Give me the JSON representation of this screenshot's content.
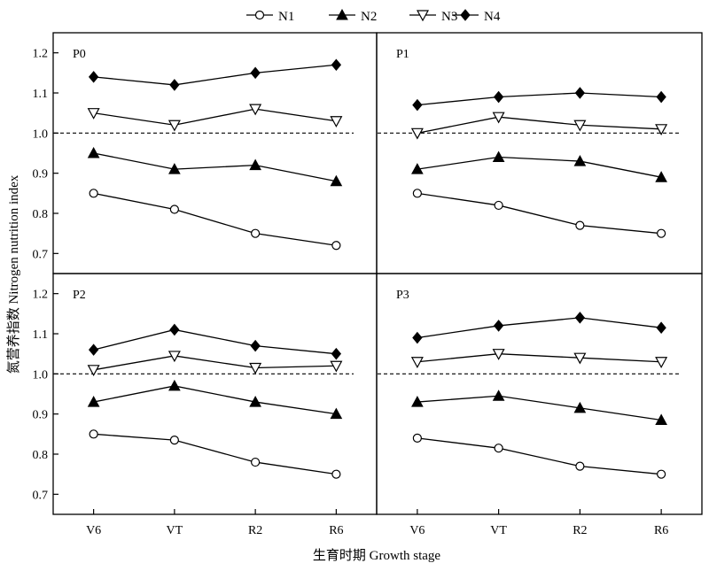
{
  "legend_labels": [
    "N1",
    "N2",
    "N3",
    "N4"
  ],
  "y_axis_title": "氮营养指数 Nitrogen nutrition index",
  "x_axis_title": "生育时期 Growth stage",
  "chart_data": {
    "type": "line",
    "categories": [
      "V6",
      "VT",
      "R2",
      "R6"
    ],
    "ylim": [
      0.65,
      1.25
    ],
    "yticks": [
      0.7,
      0.8,
      0.9,
      1.0,
      1.1,
      1.2
    ],
    "ytick_labels": [
      "0.7",
      "0.8",
      "0.9",
      "1.0",
      "1.1",
      "1.2"
    ],
    "reference_line": 1.0,
    "legend_position": "top-center",
    "grid": false,
    "series_styles": {
      "N1": "open-circle",
      "N2": "filled-triangle-up",
      "N3": "open-triangle-down",
      "N4": "filled-diamond"
    },
    "panels": [
      {
        "label": "P0",
        "series": [
          {
            "name": "N1",
            "values": [
              0.85,
              0.81,
              0.75,
              0.72
            ]
          },
          {
            "name": "N2",
            "values": [
              0.95,
              0.91,
              0.92,
              0.88
            ]
          },
          {
            "name": "N3",
            "values": [
              1.05,
              1.02,
              1.06,
              1.03
            ]
          },
          {
            "name": "N4",
            "values": [
              1.14,
              1.12,
              1.15,
              1.17
            ]
          }
        ]
      },
      {
        "label": "P1",
        "series": [
          {
            "name": "N1",
            "values": [
              0.85,
              0.82,
              0.77,
              0.75
            ]
          },
          {
            "name": "N2",
            "values": [
              0.91,
              0.94,
              0.93,
              0.89
            ]
          },
          {
            "name": "N3",
            "values": [
              1.0,
              1.04,
              1.02,
              1.01
            ]
          },
          {
            "name": "N4",
            "values": [
              1.07,
              1.09,
              1.1,
              1.09
            ]
          }
        ]
      },
      {
        "label": "P2",
        "series": [
          {
            "name": "N1",
            "values": [
              0.85,
              0.835,
              0.78,
              0.75
            ]
          },
          {
            "name": "N2",
            "values": [
              0.93,
              0.97,
              0.93,
              0.9
            ]
          },
          {
            "name": "N3",
            "values": [
              1.01,
              1.045,
              1.015,
              1.02
            ]
          },
          {
            "name": "N4",
            "values": [
              1.06,
              1.11,
              1.07,
              1.05
            ]
          }
        ]
      },
      {
        "label": "P3",
        "series": [
          {
            "name": "N1",
            "values": [
              0.84,
              0.815,
              0.77,
              0.75
            ]
          },
          {
            "name": "N2",
            "values": [
              0.93,
              0.945,
              0.915,
              0.885
            ]
          },
          {
            "name": "N3",
            "values": [
              1.03,
              1.05,
              1.04,
              1.03
            ]
          },
          {
            "name": "N4",
            "values": [
              1.09,
              1.12,
              1.14,
              1.115
            ]
          }
        ]
      }
    ]
  }
}
